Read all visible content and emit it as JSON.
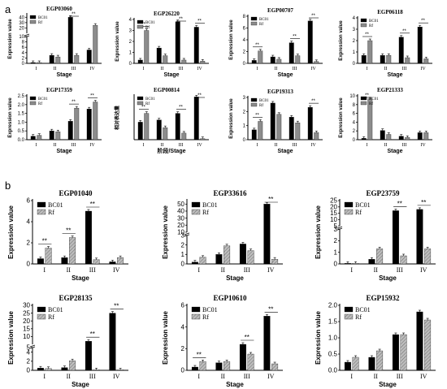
{
  "panels": [
    {
      "id": "a",
      "label": "a"
    },
    {
      "id": "b",
      "label": "b"
    }
  ],
  "colors": {
    "bc01": "#000000",
    "rf": "#8c8c8c",
    "rf_hatch": "#bdbdbd",
    "axis": "#000000"
  },
  "chart_data": [
    {
      "type": "bar",
      "title": "EGP03060",
      "categories": [
        "I",
        "II",
        "III",
        "IV"
      ],
      "xlabel": "Stage",
      "ylabel": "Expression value",
      "yticks": [
        "0",
        "2",
        "4",
        "6",
        "8",
        "10",
        "20",
        "30",
        "40"
      ],
      "axis_break": true,
      "series": [
        {
          "name": "BC01",
          "values": [
            0.3,
            3.0,
            40.0,
            5.0
          ]
        },
        {
          "name": "Rf",
          "values": [
            0.3,
            2.4,
            3.0,
            25.0
          ]
        }
      ],
      "significance": [
        "",
        "",
        "**",
        ""
      ]
    },
    {
      "type": "bar",
      "title": "EGP26220",
      "categories": [
        "I",
        "II",
        "III",
        "IV"
      ],
      "xlabel": "Stage",
      "ylabel": "Expression value",
      "yticks": [
        "0",
        "1",
        "2",
        "3",
        "4"
      ],
      "ylim": [
        0,
        4
      ],
      "series": [
        {
          "name": "BC01",
          "values": [
            0.3,
            1.4,
            3.8,
            3.3
          ]
        },
        {
          "name": "Rf",
          "values": [
            3.0,
            0.7,
            0.3,
            0.2
          ]
        }
      ],
      "significance": [
        "**",
        "",
        "**",
        "**"
      ]
    },
    {
      "type": "bar",
      "title": "EGP00707",
      "categories": [
        "I",
        "II",
        "III",
        "IV"
      ],
      "xlabel": "Stage",
      "ylabel": "Expression value",
      "yticks": [
        "0",
        "2",
        "4",
        "6",
        "8"
      ],
      "ylim": [
        0,
        8
      ],
      "series": [
        {
          "name": "BC01",
          "values": [
            0.5,
            1.1,
            3.5,
            7.2
          ]
        },
        {
          "name": "Rf",
          "values": [
            2.1,
            0.7,
            1.3,
            0.3
          ]
        }
      ],
      "significance": [
        "**",
        "",
        "**",
        "**"
      ]
    },
    {
      "type": "bar",
      "title": "EGP06118",
      "categories": [
        "I",
        "II",
        "III",
        "IV"
      ],
      "xlabel": "Stage",
      "ylabel": "Expression value",
      "yticks": [
        "0",
        "1",
        "2",
        "3",
        "4"
      ],
      "ylim": [
        0,
        4
      ],
      "series": [
        {
          "name": "BC01",
          "values": [
            0.7,
            0.7,
            2.3,
            3.2
          ]
        },
        {
          "name": "Rf",
          "values": [
            2.0,
            0.7,
            0.5,
            0.4
          ]
        }
      ],
      "significance": [
        "**",
        "",
        "**",
        "**"
      ]
    },
    {
      "type": "bar",
      "title": "EGP17359",
      "categories": [
        "I",
        "II",
        "III",
        "IV"
      ],
      "xlabel": "Stage",
      "ylabel": "Expression value",
      "yticks": [
        "0.0",
        "0.5",
        "1.0",
        "1.5",
        "2.0",
        "2.5"
      ],
      "ylim": [
        0,
        2.5
      ],
      "series": [
        {
          "name": "BC01",
          "values": [
            0.2,
            0.5,
            1.05,
            1.75
          ]
        },
        {
          "name": "Rf",
          "values": [
            0.25,
            0.45,
            1.8,
            2.15
          ]
        }
      ],
      "significance": [
        "",
        "",
        "**",
        "**"
      ]
    },
    {
      "type": "bar",
      "title": "EGP00814",
      "categories": [
        "I",
        "II",
        "III",
        "IV"
      ],
      "xlabel": "阶段/Stage",
      "ylabel": "相对表达量",
      "yticks": [],
      "ylim": [
        0,
        4
      ],
      "series": [
        {
          "name": "BC01",
          "values": [
            1.6,
            1.8,
            2.4,
            3.9
          ]
        },
        {
          "name": "Rf",
          "values": [
            2.4,
            1.1,
            0.6,
            0.1
          ]
        }
      ],
      "significance": [
        "**",
        "",
        "**",
        "**"
      ]
    },
    {
      "type": "bar",
      "title": "EGP19313",
      "categories": [
        "I",
        "II",
        "III",
        "IV"
      ],
      "xlabel": "Stage",
      "ylabel": "Expression value",
      "yticks": [
        "0",
        "1",
        "2",
        "3"
      ],
      "ylim": [
        0,
        3
      ],
      "series": [
        {
          "name": "BC01",
          "values": [
            0.7,
            2.6,
            1.6,
            2.3
          ]
        },
        {
          "name": "Rf",
          "values": [
            1.3,
            1.8,
            1.2,
            0.5
          ]
        }
      ],
      "significance": [
        "**",
        "",
        "",
        "**"
      ]
    },
    {
      "type": "bar",
      "title": "EGP21333",
      "categories": [
        "I",
        "II",
        "III",
        "IV"
      ],
      "xlabel": "Stage",
      "ylabel": "Expression value",
      "yticks": [
        "0",
        "2",
        "4",
        "6",
        "8",
        "10"
      ],
      "ylim": [
        0,
        10
      ],
      "series": [
        {
          "name": "BC01",
          "values": [
            0.3,
            2.1,
            0.8,
            1.6
          ]
        },
        {
          "name": "Rf",
          "values": [
            9.3,
            1.2,
            0.5,
            1.6
          ]
        }
      ],
      "significance": [
        "**",
        "",
        "",
        ""
      ]
    },
    {
      "type": "bar",
      "title": "EGP01040",
      "categories": [
        "I",
        "II",
        "III",
        "IV"
      ],
      "xlabel": "Stage",
      "ylabel": "Expression value",
      "yticks": [
        "0",
        "2",
        "4",
        "6"
      ],
      "ylim": [
        0,
        6
      ],
      "series": [
        {
          "name": "BC01",
          "values": [
            0.5,
            0.6,
            5.0,
            0.2
          ]
        },
        {
          "name": "Rf",
          "values": [
            1.5,
            2.5,
            0.4,
            0.6
          ]
        }
      ],
      "significance": [
        "**",
        "**",
        "**",
        ""
      ]
    },
    {
      "type": "bar",
      "title": "EGP33616",
      "categories": [
        "I",
        "II",
        "III",
        "IV"
      ],
      "xlabel": "Stage",
      "ylabel": "Expression value",
      "yticks": [
        "0",
        "1",
        "2",
        "3",
        "10",
        "20",
        "30",
        "40",
        "50"
      ],
      "axis_break": true,
      "series": [
        {
          "name": "BC01",
          "values": [
            0.2,
            1.0,
            2.1,
            50.0
          ]
        },
        {
          "name": "Rf",
          "values": [
            0.7,
            1.9,
            1.4,
            0.5
          ]
        }
      ],
      "significance": [
        "",
        "",
        "",
        "**"
      ]
    },
    {
      "type": "bar",
      "title": "EGP23759",
      "categories": [
        "I",
        "II",
        "III",
        "IV"
      ],
      "xlabel": "Stage",
      "ylabel": "Expression value",
      "yticks": [
        "0",
        "1",
        "2",
        "3",
        "5",
        "10",
        "15",
        "20",
        "25"
      ],
      "axis_break": true,
      "series": [
        {
          "name": "BC01",
          "values": [
            0.05,
            0.4,
            17.0,
            18.0
          ]
        },
        {
          "name": "Rf",
          "values": [
            0.05,
            1.3,
            0.7,
            1.3
          ]
        }
      ],
      "significance": [
        "",
        "",
        "**",
        "**"
      ]
    },
    {
      "type": "bar",
      "title": "EGP28135",
      "categories": [
        "I",
        "II",
        "III",
        "IV"
      ],
      "xlabel": "Stage",
      "ylabel": "Expression value",
      "yticks": [
        "0",
        "2",
        "4",
        "5",
        "10",
        "15",
        "20",
        "25",
        "30"
      ],
      "axis_break": true,
      "series": [
        {
          "name": "BC01",
          "values": [
            0.5,
            0.6,
            7.0,
            25.0
          ]
        },
        {
          "name": "Rf",
          "values": [
            0.4,
            2.1,
            0.1,
            0.1
          ]
        }
      ],
      "significance": [
        "",
        "",
        "**",
        "**"
      ]
    },
    {
      "type": "bar",
      "title": "EGP10610",
      "categories": [
        "I",
        "II",
        "III",
        "IV"
      ],
      "xlabel": "Stage",
      "ylabel": "Expression value",
      "yticks": [
        "0",
        "2",
        "4",
        "6"
      ],
      "ylim": [
        0,
        6
      ],
      "series": [
        {
          "name": "BC01",
          "values": [
            0.3,
            0.7,
            2.4,
            5.0
          ]
        },
        {
          "name": "Rf",
          "values": [
            0.8,
            0.8,
            1.5,
            0.6
          ]
        }
      ],
      "significance": [
        "**",
        "",
        "**",
        "**"
      ]
    },
    {
      "type": "bar",
      "title": "EGP15932",
      "categories": [
        "I",
        "II",
        "III",
        "IV"
      ],
      "xlabel": "Stage",
      "ylabel": "Expression value",
      "yticks": [
        "0.0",
        "0.5",
        "1.0",
        "1.5",
        "2.0"
      ],
      "ylim": [
        0,
        2
      ],
      "series": [
        {
          "name": "BC01",
          "values": [
            0.25,
            0.4,
            1.1,
            1.8
          ]
        },
        {
          "name": "Rf",
          "values": [
            0.4,
            0.6,
            1.1,
            1.55
          ]
        }
      ],
      "significance": [
        "",
        "",
        "",
        ""
      ]
    }
  ]
}
